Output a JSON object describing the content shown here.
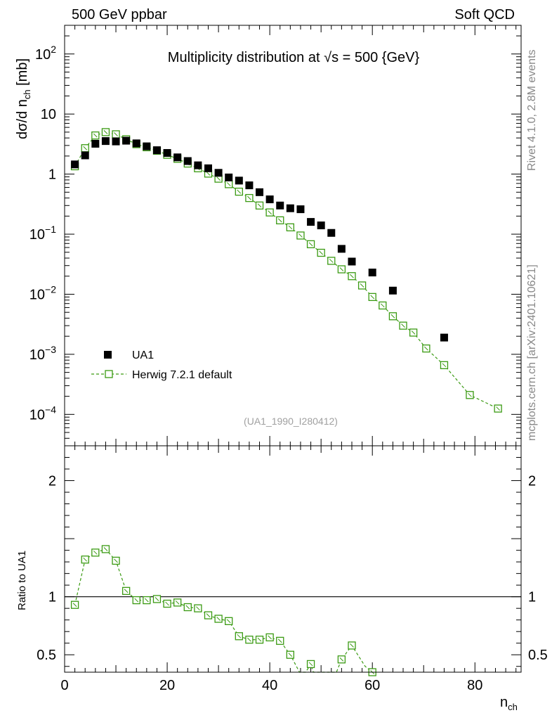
{
  "header": {
    "left": "500 GeV ppbar",
    "right": "Soft QCD"
  },
  "side_labels": {
    "rivet": "Rivet 4.1.0,  2.8M events",
    "site": "mcplots.cern.ch [arXiv:2401.10621]"
  },
  "chart_data": {
    "type": "scatter",
    "title": "Multiplicity distribution at √s = 500 {GeV}",
    "analysis_id": "(UA1_1990_I280412)",
    "xlabel": "n_ch",
    "ylabel": "dσ/d n_ch [mb]",
    "xlim": [
      0,
      89
    ],
    "ylim": [
      3e-05,
      300
    ],
    "yscale": "log",
    "x_ticks": [
      0,
      20,
      40,
      60,
      80
    ],
    "y_ticks": [
      {
        "value": 0.0001,
        "base": "10",
        "exp": "−4"
      },
      {
        "value": 0.001,
        "base": "10",
        "exp": "−3"
      },
      {
        "value": 0.01,
        "base": "10",
        "exp": "−2"
      },
      {
        "value": 0.1,
        "base": "10",
        "exp": "−1"
      },
      {
        "value": 1,
        "base": "1",
        "exp": ""
      },
      {
        "value": 10,
        "base": "10",
        "exp": ""
      },
      {
        "value": 100,
        "base": "10",
        "exp": "2"
      }
    ],
    "series": [
      {
        "name": "UA1",
        "style": "marker",
        "color": "#000000",
        "x": [
          2,
          4,
          6,
          8,
          10,
          12,
          14,
          16,
          18,
          20,
          22,
          24,
          26,
          28,
          30,
          32,
          34,
          36,
          38,
          40,
          42,
          44,
          46,
          48,
          50,
          52,
          54,
          56,
          60,
          64,
          74
        ],
        "y": [
          1.45,
          2.05,
          3.2,
          3.55,
          3.5,
          3.6,
          3.25,
          2.9,
          2.5,
          2.25,
          1.9,
          1.65,
          1.4,
          1.25,
          1.05,
          0.88,
          0.78,
          0.65,
          0.5,
          0.38,
          0.3,
          0.27,
          0.26,
          0.16,
          0.14,
          0.105,
          0.057,
          0.035,
          0.023,
          0.0115,
          0.0019
        ]
      },
      {
        "name": "Herwig 7.2.1 default",
        "style": "dashed-line-open-square",
        "color": "#3a9a12",
        "x": [
          2,
          4,
          6,
          8,
          10,
          12,
          14,
          16,
          18,
          20,
          22,
          24,
          26,
          28,
          30,
          32,
          34,
          36,
          38,
          40,
          42,
          44,
          46,
          48,
          50,
          52,
          54,
          56,
          58,
          60,
          62,
          64,
          66,
          68,
          70.5,
          74,
          79,
          84.5
        ],
        "y": [
          1.35,
          2.7,
          4.4,
          5.0,
          4.6,
          3.8,
          3.15,
          2.8,
          2.45,
          2.1,
          1.8,
          1.5,
          1.25,
          1.02,
          0.84,
          0.68,
          0.51,
          0.4,
          0.3,
          0.23,
          0.17,
          0.13,
          0.095,
          0.068,
          0.049,
          0.036,
          0.026,
          0.02,
          0.014,
          0.009,
          0.0065,
          0.0043,
          0.003,
          0.0023,
          0.00125,
          0.00066,
          0.00021,
          0.000125
        ]
      }
    ],
    "ratio": {
      "ylabel": "Ratio to UA1",
      "ylim": [
        0.35,
        2.3
      ],
      "y_ticks": [
        {
          "value": 0.5,
          "label": "0.5"
        },
        {
          "value": 1,
          "label": "1"
        },
        {
          "value": 2,
          "label": "2"
        }
      ],
      "reference": 1,
      "x": [
        2,
        4,
        6,
        8,
        10,
        12,
        14,
        16,
        18,
        20,
        22,
        24,
        26,
        28,
        30,
        32,
        34,
        36,
        38,
        40,
        42,
        44,
        48,
        54,
        56,
        60
      ],
      "y": [
        0.93,
        1.32,
        1.38,
        1.41,
        1.31,
        1.05,
        0.97,
        0.97,
        0.98,
        0.94,
        0.95,
        0.91,
        0.9,
        0.84,
        0.81,
        0.79,
        0.66,
        0.63,
        0.63,
        0.65,
        0.62,
        0.5,
        0.42,
        0.46,
        0.58,
        0.35
      ],
      "dashed_path_x": [
        2,
        4,
        6,
        8,
        10,
        12,
        14,
        16,
        18,
        20,
        22,
        24,
        26,
        28,
        30,
        32,
        34,
        36,
        38,
        40,
        42,
        44,
        45.8,
        47,
        48,
        48.5,
        53,
        54,
        56,
        58.6,
        60
      ],
      "dashed_path_y": [
        0.93,
        1.32,
        1.38,
        1.41,
        1.31,
        1.05,
        0.97,
        0.97,
        0.98,
        0.94,
        0.95,
        0.91,
        0.9,
        0.84,
        0.81,
        0.79,
        0.66,
        0.63,
        0.63,
        0.65,
        0.62,
        0.5,
        0.35,
        0.35,
        0.42,
        0.35,
        0.35,
        0.46,
        0.58,
        0.4,
        0.35
      ]
    }
  }
}
